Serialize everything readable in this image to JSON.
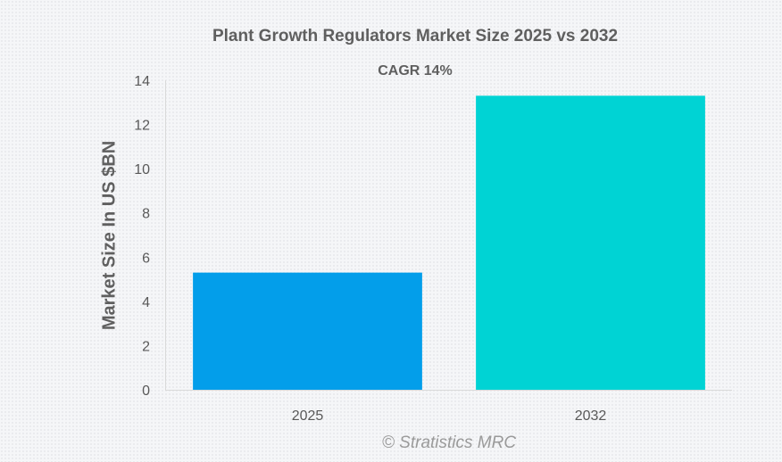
{
  "chart_data": {
    "type": "bar",
    "title": "Plant Growth Regulators Market Size 2025 vs 2032",
    "subtitle": "CAGR 14%",
    "xlabel": "",
    "ylabel": "Market Size In US $BN",
    "categories": [
      "2025",
      "2032"
    ],
    "values": [
      5.3,
      13.3
    ],
    "colors": [
      "#039eea",
      "#00d3d4"
    ],
    "ylim": [
      0,
      14
    ],
    "yticks": [
      0,
      2,
      4,
      6,
      8,
      10,
      12,
      14
    ],
    "grid": false,
    "legend": "none"
  },
  "footer": {
    "credit": "© Stratistics MRC"
  }
}
